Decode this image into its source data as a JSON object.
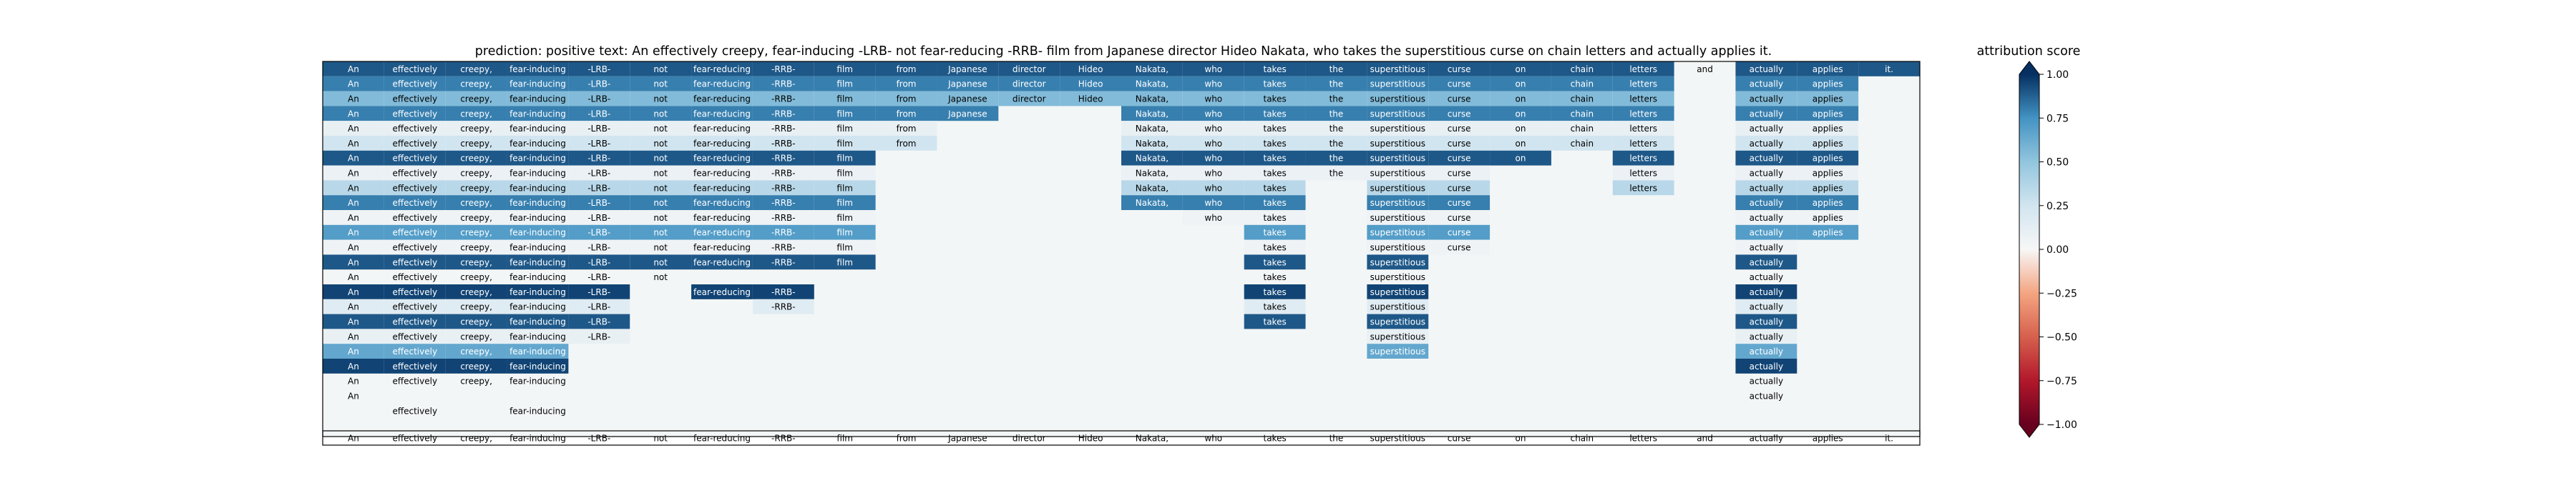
{
  "chart_data": {
    "type": "heatmap",
    "title": "prediction:  positive      text:  An effectively creepy, fear-inducing -LRB- not fear-reducing -RRB- film from Japanese director Hideo Nakata, who takes the superstitious curse on chain letters and actually applies it.",
    "tokens": [
      "An",
      "effectively",
      "creepy,",
      "fear-inducing",
      "-LRB-",
      "not",
      "fear-reducing",
      "-RRB-",
      "film",
      "from",
      "Japanese",
      "director",
      "Hideo",
      "Nakata,",
      "who",
      "takes",
      "the",
      "superstitious",
      "curse",
      "on",
      "chain",
      "letters",
      "and",
      "actually",
      "applies",
      "it."
    ],
    "colorbar": {
      "label": "attribution score",
      "range": [
        -1.0,
        1.0
      ],
      "ticks": [
        "1.00",
        "0.75",
        "0.50",
        "0.25",
        "0.00",
        "−0.25",
        "−0.50",
        "−0.75",
        "−1.00"
      ],
      "colormap": "RdBu",
      "extend": "both"
    },
    "row_tokens": [
      [
        0,
        1,
        2,
        3,
        4,
        5,
        6,
        7,
        8,
        9,
        10,
        11,
        12,
        13,
        14,
        15,
        16,
        17,
        18,
        19,
        20,
        21,
        22,
        23,
        24,
        25
      ],
      [
        0,
        1,
        2,
        3,
        4,
        5,
        6,
        7,
        8,
        9,
        10,
        11,
        12,
        13,
        14,
        15,
        16,
        17,
        18,
        19,
        20,
        21,
        23,
        24
      ],
      [
        0,
        1,
        2,
        3,
        4,
        5,
        6,
        7,
        8,
        9,
        10,
        11,
        12,
        13,
        14,
        15,
        16,
        17,
        18,
        19,
        20,
        21,
        23,
        24
      ],
      [
        0,
        1,
        2,
        3,
        4,
        5,
        6,
        7,
        8,
        9,
        10,
        13,
        14,
        15,
        16,
        17,
        18,
        19,
        20,
        21,
        23,
        24
      ],
      [
        0,
        1,
        2,
        3,
        4,
        5,
        6,
        7,
        8,
        9,
        13,
        14,
        15,
        16,
        17,
        18,
        19,
        20,
        21,
        23,
        24
      ],
      [
        0,
        1,
        2,
        3,
        4,
        5,
        6,
        7,
        8,
        9,
        13,
        14,
        15,
        16,
        17,
        18,
        19,
        20,
        21,
        23,
        24
      ],
      [
        0,
        1,
        2,
        3,
        4,
        5,
        6,
        7,
        8,
        13,
        14,
        15,
        16,
        17,
        18,
        19,
        21,
        23,
        24
      ],
      [
        0,
        1,
        2,
        3,
        4,
        5,
        6,
        7,
        8,
        13,
        14,
        15,
        16,
        17,
        18,
        21,
        23,
        24
      ],
      [
        0,
        1,
        2,
        3,
        4,
        5,
        6,
        7,
        8,
        13,
        14,
        15,
        17,
        18,
        21,
        23,
        24
      ],
      [
        0,
        1,
        2,
        3,
        4,
        5,
        6,
        7,
        8,
        13,
        14,
        15,
        17,
        18,
        23,
        24
      ],
      [
        0,
        1,
        2,
        3,
        4,
        5,
        6,
        7,
        8,
        14,
        15,
        17,
        18,
        23,
        24
      ],
      [
        0,
        1,
        2,
        3,
        4,
        5,
        6,
        7,
        8,
        15,
        17,
        18,
        23,
        24
      ],
      [
        0,
        1,
        2,
        3,
        4,
        5,
        6,
        7,
        8,
        15,
        17,
        18,
        23
      ],
      [
        0,
        1,
        2,
        3,
        4,
        5,
        6,
        7,
        8,
        15,
        17,
        23
      ],
      [
        0,
        1,
        2,
        3,
        4,
        5,
        15,
        17,
        23
      ],
      [
        0,
        1,
        2,
        3,
        4,
        6,
        7,
        15,
        17,
        23
      ],
      [
        0,
        1,
        2,
        3,
        4,
        7,
        15,
        17,
        23
      ],
      [
        0,
        1,
        2,
        3,
        4,
        15,
        17,
        23
      ],
      [
        0,
        1,
        2,
        3,
        4,
        17,
        23
      ],
      [
        0,
        1,
        2,
        3,
        17,
        23
      ],
      [
        0,
        1,
        2,
        3,
        23
      ],
      [
        0,
        1,
        2,
        3,
        23
      ],
      [
        0,
        23
      ],
      [
        1,
        3
      ],
      [
        0,
        1,
        2,
        3,
        4,
        5,
        6,
        7,
        8,
        9,
        10,
        11,
        12,
        13,
        14,
        15,
        16,
        17,
        18,
        19,
        20,
        21,
        22,
        23,
        24,
        25
      ]
    ],
    "row_values": [
      [
        0.9,
        0.9,
        0.9,
        0.9,
        0.9,
        0.9,
        0.9,
        0.9,
        0.9,
        0.9,
        0.9,
        0.9,
        0.9,
        0.9,
        0.9,
        0.9,
        0.9,
        0.9,
        0.9,
        0.9,
        0.9,
        0.9,
        0.0,
        0.9,
        0.9,
        0.9
      ],
      [
        0.8,
        0.8,
        0.8,
        0.8,
        0.8,
        0.8,
        0.8,
        0.8,
        0.8,
        0.8,
        0.8,
        0.8,
        0.8,
        0.8,
        0.8,
        0.8,
        0.8,
        0.8,
        0.8,
        0.8,
        0.8,
        0.8,
        0.8,
        0.8
      ],
      [
        0.55,
        0.55,
        0.55,
        0.55,
        0.55,
        0.55,
        0.55,
        0.55,
        0.55,
        0.55,
        0.55,
        0.55,
        0.55,
        0.55,
        0.55,
        0.55,
        0.55,
        0.55,
        0.55,
        0.55,
        0.55,
        0.55,
        0.55,
        0.55
      ],
      [
        0.8,
        0.8,
        0.8,
        0.8,
        0.8,
        0.8,
        0.8,
        0.8,
        0.8,
        0.8,
        0.8,
        0.8,
        0.8,
        0.8,
        0.8,
        0.8,
        0.8,
        0.8,
        0.8,
        0.8,
        0.8,
        0.8
      ],
      [
        0.1,
        0.1,
        0.1,
        0.1,
        0.1,
        0.1,
        0.1,
        0.1,
        0.1,
        0.1,
        0.1,
        0.1,
        0.1,
        0.1,
        0.1,
        0.1,
        0.1,
        0.1,
        0.1,
        0.1,
        0.1
      ],
      [
        0.25,
        0.25,
        0.25,
        0.25,
        0.25,
        0.25,
        0.25,
        0.25,
        0.25,
        0.25,
        0.25,
        0.25,
        0.25,
        0.25,
        0.25,
        0.25,
        0.25,
        0.25,
        0.25,
        0.25,
        0.25
      ],
      [
        0.9,
        0.9,
        0.9,
        0.9,
        0.9,
        0.9,
        0.9,
        0.9,
        0.9,
        0.9,
        0.9,
        0.9,
        0.9,
        0.9,
        0.9,
        0.9,
        0.9,
        0.9,
        0.9
      ],
      [
        0.08,
        0.08,
        0.08,
        0.08,
        0.08,
        0.08,
        0.08,
        0.08,
        0.08,
        0.08,
        0.08,
        0.08,
        0.08,
        0.08,
        0.08,
        0.08,
        0.08,
        0.08
      ],
      [
        0.35,
        0.35,
        0.35,
        0.35,
        0.35,
        0.35,
        0.35,
        0.35,
        0.35,
        0.35,
        0.35,
        0.35,
        0.35,
        0.35,
        0.35,
        0.35,
        0.35
      ],
      [
        0.8,
        0.8,
        0.8,
        0.8,
        0.8,
        0.8,
        0.8,
        0.8,
        0.8,
        0.8,
        0.8,
        0.8,
        0.8,
        0.8,
        0.8,
        0.8
      ],
      [
        0.05,
        0.05,
        0.05,
        0.05,
        0.05,
        0.05,
        0.05,
        0.05,
        0.05,
        0.05,
        0.05,
        0.05,
        0.05,
        0.05,
        0.05
      ],
      [
        0.7,
        0.7,
        0.7,
        0.7,
        0.7,
        0.7,
        0.7,
        0.7,
        0.7,
        0.7,
        0.7,
        0.7,
        0.7,
        0.7
      ],
      [
        0.05,
        0.05,
        0.05,
        0.05,
        0.05,
        0.05,
        0.05,
        0.05,
        0.05,
        0.05,
        0.05,
        0.05,
        0.05
      ],
      [
        0.9,
        0.9,
        0.9,
        0.9,
        0.9,
        0.9,
        0.9,
        0.9,
        0.9,
        0.9,
        0.9,
        0.9
      ],
      [
        0.0,
        0.0,
        0.0,
        0.0,
        0.0,
        0.0,
        0.0,
        0.0,
        0.0
      ],
      [
        0.95,
        0.95,
        0.95,
        0.95,
        0.95,
        0.95,
        0.95,
        0.95,
        0.95,
        0.95
      ],
      [
        0.15,
        0.15,
        0.15,
        0.15,
        0.15,
        0.15,
        0.15,
        0.15,
        0.15
      ],
      [
        0.9,
        0.9,
        0.9,
        0.9,
        0.9,
        0.9,
        0.9,
        0.9
      ],
      [
        0.1,
        0.1,
        0.1,
        0.1,
        0.1,
        0.1,
        0.1
      ],
      [
        0.65,
        0.65,
        0.65,
        0.65,
        0.65,
        0.65
      ],
      [
        0.95,
        0.95,
        0.95,
        0.95,
        0.95
      ],
      [
        0.0,
        0.0,
        0.0,
        0.0,
        0.0
      ],
      [
        0.0,
        0.0
      ],
      [
        0.0,
        0.0
      ],
      [
        0.0,
        0.0,
        0.0,
        0.0,
        0.0,
        0.0,
        0.0,
        0.0,
        0.0,
        0.0,
        0.0,
        0.0,
        0.0,
        0.0,
        0.0,
        0.0,
        0.0,
        0.0,
        0.0,
        0.0,
        0.0,
        0.0,
        0.0,
        0.0,
        0.0,
        0.0
      ]
    ],
    "x": [],
    "y": [],
    "grid": false,
    "legend_position": "right"
  }
}
